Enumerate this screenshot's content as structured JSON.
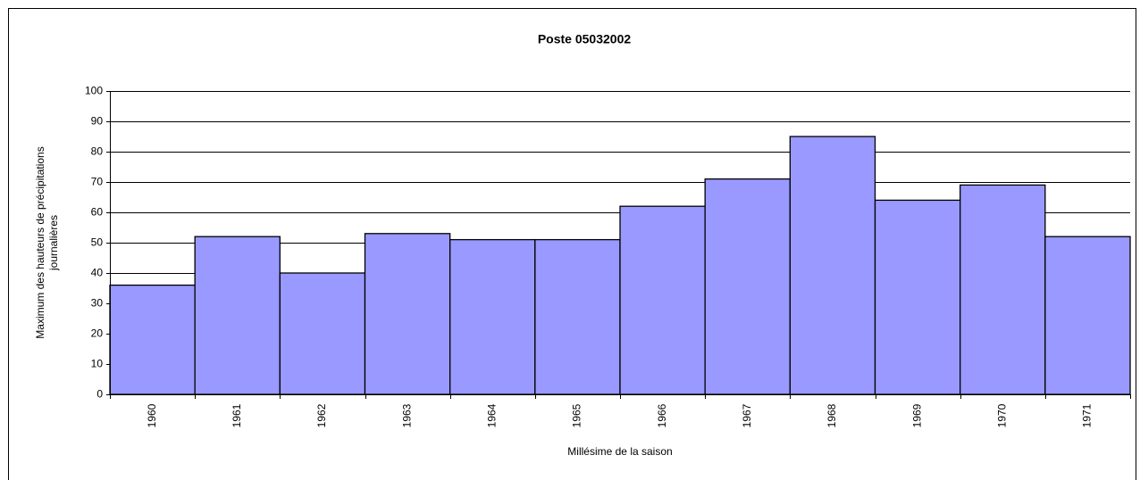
{
  "chart_data": {
    "type": "bar",
    "title": "Poste 05032002",
    "x_label": "Millésime de la saison",
    "y_label": [
      "Maximum des hauteurs de précipitations",
      "journalières"
    ],
    "categories": [
      "1960",
      "1961",
      "1962",
      "1963",
      "1964",
      "1965",
      "1966",
      "1967",
      "1968",
      "1969",
      "1970",
      "1971"
    ],
    "values": [
      36,
      52,
      40,
      53,
      51,
      51,
      62,
      71,
      85,
      64,
      69,
      52
    ],
    "color": "#9999ff",
    "ylim": [
      0,
      100
    ],
    "yticks": [
      0,
      10,
      20,
      30,
      40,
      50,
      60,
      70,
      80,
      90,
      100
    ],
    "grid": true
  }
}
